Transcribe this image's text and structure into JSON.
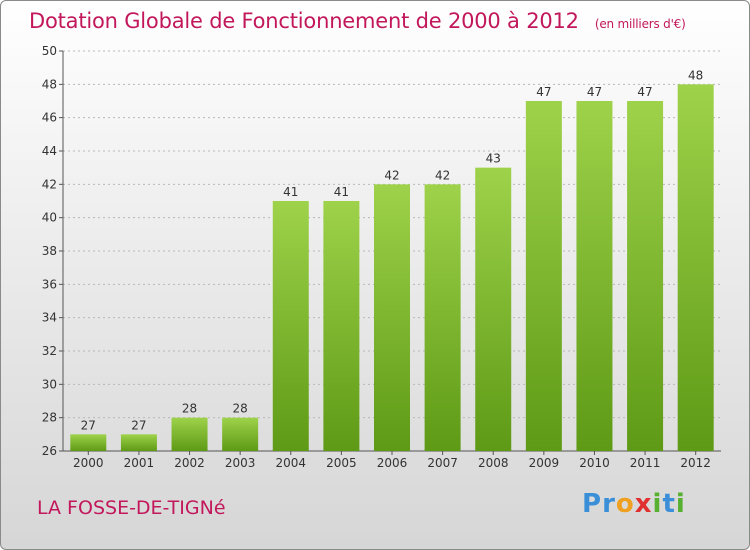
{
  "chart_data": {
    "type": "bar",
    "title": "Dotation Globale de Fonctionnement de 2000 à 2012",
    "subtitle": "(en milliers d'€)",
    "categories": [
      "2000",
      "2001",
      "2002",
      "2003",
      "2004",
      "2005",
      "2006",
      "2007",
      "2008",
      "2009",
      "2010",
      "2011",
      "2012"
    ],
    "values": [
      27,
      27,
      28,
      28,
      41,
      41,
      42,
      42,
      43,
      47,
      47,
      47,
      48
    ],
    "ylim": [
      26,
      50
    ],
    "yticks": [
      26,
      28,
      30,
      32,
      34,
      36,
      38,
      40,
      42,
      44,
      46,
      48,
      50
    ],
    "grid": true,
    "bar_color": "#7cb82f"
  },
  "footer": {
    "commune": "LA FOSSE-DE-TIGNé",
    "logo_letters": [
      {
        "ch": "P",
        "color": "#3a8fd8"
      },
      {
        "ch": "r",
        "color": "#3a8fd8"
      },
      {
        "ch": "o",
        "color": "#f0a020"
      },
      {
        "ch": "x",
        "color": "#e03030"
      },
      {
        "ch": "i",
        "color": "#58b030"
      },
      {
        "ch": "t",
        "color": "#3a8fd8"
      },
      {
        "ch": "i",
        "color": "#58b030"
      }
    ]
  }
}
